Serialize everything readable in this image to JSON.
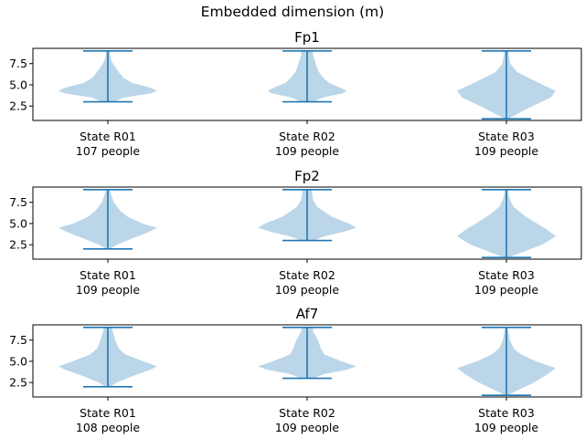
{
  "figure": {
    "suptitle": "Embedded dimension (m)"
  },
  "colors": {
    "body": "#1f77b4",
    "body_opacity": 0.3,
    "lines": "#1f77b4",
    "axes": "#000000"
  },
  "chart_data": [
    {
      "type": "violin",
      "title": "Fp1",
      "ylim": [
        0.8,
        9.3
      ],
      "yticks": [
        2.5,
        5.0,
        7.5
      ],
      "ytick_labels": [
        "2.5",
        "5.0",
        "7.5"
      ],
      "grid": false,
      "categories": [
        "State R01",
        "State R02",
        "State R03"
      ],
      "category_counts": [
        "107 people",
        "109 people",
        "109 people"
      ],
      "violins": [
        {
          "min": 3,
          "max": 9,
          "density": [
            [
              3,
              0.12
            ],
            [
              3.5,
              0.32
            ],
            [
              4,
              0.88
            ],
            [
              4.3,
              1.0
            ],
            [
              4.7,
              0.85
            ],
            [
              5.2,
              0.5
            ],
            [
              5.8,
              0.32
            ],
            [
              6.5,
              0.22
            ],
            [
              7,
              0.16
            ],
            [
              7.8,
              0.07
            ],
            [
              8.5,
              0.04
            ],
            [
              9,
              0.04
            ]
          ]
        },
        {
          "min": 3,
          "max": 9,
          "density": [
            [
              3,
              0.12
            ],
            [
              3.5,
              0.32
            ],
            [
              4,
              0.72
            ],
            [
              4.3,
              0.8
            ],
            [
              4.7,
              0.66
            ],
            [
              5.2,
              0.45
            ],
            [
              5.8,
              0.33
            ],
            [
              6.5,
              0.24
            ],
            [
              7,
              0.2
            ],
            [
              7.8,
              0.16
            ],
            [
              8.5,
              0.12
            ],
            [
              9,
              0.12
            ]
          ]
        },
        {
          "min": 1,
          "max": 9,
          "density": [
            [
              1,
              0.03
            ],
            [
              1.5,
              0.2
            ],
            [
              2.5,
              0.53
            ],
            [
              3.5,
              0.9
            ],
            [
              4.3,
              1.0
            ],
            [
              5,
              0.74
            ],
            [
              5.8,
              0.46
            ],
            [
              6.5,
              0.22
            ],
            [
              7.5,
              0.08
            ],
            [
              8.5,
              0.05
            ],
            [
              9,
              0.05
            ]
          ]
        }
      ]
    },
    {
      "type": "violin",
      "title": "Fp2",
      "ylim": [
        0.8,
        9.3
      ],
      "yticks": [
        2.5,
        5.0,
        7.5
      ],
      "ytick_labels": [
        "2.5",
        "5.0",
        "7.5"
      ],
      "grid": false,
      "categories": [
        "State R01",
        "State R02",
        "State R03"
      ],
      "category_counts": [
        "109 people",
        "109 people",
        "109 people"
      ],
      "violins": [
        {
          "min": 2,
          "max": 9,
          "density": [
            [
              2,
              0.04
            ],
            [
              2.5,
              0.18
            ],
            [
              3.3,
              0.52
            ],
            [
              4,
              0.83
            ],
            [
              4.5,
              1.0
            ],
            [
              5,
              0.7
            ],
            [
              5.8,
              0.4
            ],
            [
              6.5,
              0.25
            ],
            [
              7.5,
              0.12
            ],
            [
              8.5,
              0.06
            ],
            [
              9,
              0.04
            ]
          ]
        },
        {
          "min": 3,
          "max": 9,
          "density": [
            [
              3,
              0.12
            ],
            [
              3.5,
              0.36
            ],
            [
              4,
              0.72
            ],
            [
              4.5,
              1.0
            ],
            [
              5,
              0.85
            ],
            [
              5.8,
              0.5
            ],
            [
              6.5,
              0.32
            ],
            [
              7,
              0.2
            ],
            [
              7.8,
              0.12
            ],
            [
              8.5,
              0.1
            ],
            [
              9,
              0.1
            ]
          ]
        },
        {
          "min": 1,
          "max": 9,
          "density": [
            [
              1,
              0.04
            ],
            [
              1.5,
              0.27
            ],
            [
              2.5,
              0.72
            ],
            [
              3.5,
              1.0
            ],
            [
              4.3,
              0.82
            ],
            [
              5,
              0.62
            ],
            [
              6,
              0.35
            ],
            [
              7,
              0.14
            ],
            [
              8,
              0.06
            ],
            [
              8.5,
              0.04
            ],
            [
              9,
              0.03
            ]
          ]
        }
      ]
    },
    {
      "type": "violin",
      "title": "Af7",
      "ylim": [
        0.8,
        9.3
      ],
      "yticks": [
        2.5,
        5.0,
        7.5
      ],
      "ytick_labels": [
        "2.5",
        "5.0",
        "7.5"
      ],
      "grid": false,
      "categories": [
        "State R01",
        "State R02",
        "State R03"
      ],
      "category_counts": [
        "108 people",
        "109 people",
        "109 people"
      ],
      "violins": [
        {
          "min": 2,
          "max": 9,
          "density": [
            [
              2,
              0.05
            ],
            [
              2.5,
              0.18
            ],
            [
              3.3,
              0.52
            ],
            [
              4,
              0.86
            ],
            [
              4.4,
              1.0
            ],
            [
              5,
              0.72
            ],
            [
              5.8,
              0.36
            ],
            [
              6.5,
              0.22
            ],
            [
              7.5,
              0.15
            ],
            [
              8.5,
              0.1
            ],
            [
              9,
              0.08
            ]
          ]
        },
        {
          "min": 3,
          "max": 9,
          "density": [
            [
              3,
              0.12
            ],
            [
              3.5,
              0.35
            ],
            [
              4,
              0.8
            ],
            [
              4.4,
              1.0
            ],
            [
              5,
              0.7
            ],
            [
              5.8,
              0.35
            ],
            [
              6.5,
              0.28
            ],
            [
              7.5,
              0.22
            ],
            [
              8.5,
              0.12
            ],
            [
              9,
              0.12
            ]
          ]
        },
        {
          "min": 1,
          "max": 9,
          "density": [
            [
              1,
              0.03
            ],
            [
              1.5,
              0.2
            ],
            [
              2.5,
              0.56
            ],
            [
              3.5,
              0.84
            ],
            [
              4.2,
              1.0
            ],
            [
              5,
              0.6
            ],
            [
              5.8,
              0.3
            ],
            [
              6.5,
              0.15
            ],
            [
              7.5,
              0.07
            ],
            [
              8.5,
              0.04
            ],
            [
              9,
              0.03
            ]
          ]
        }
      ]
    }
  ]
}
